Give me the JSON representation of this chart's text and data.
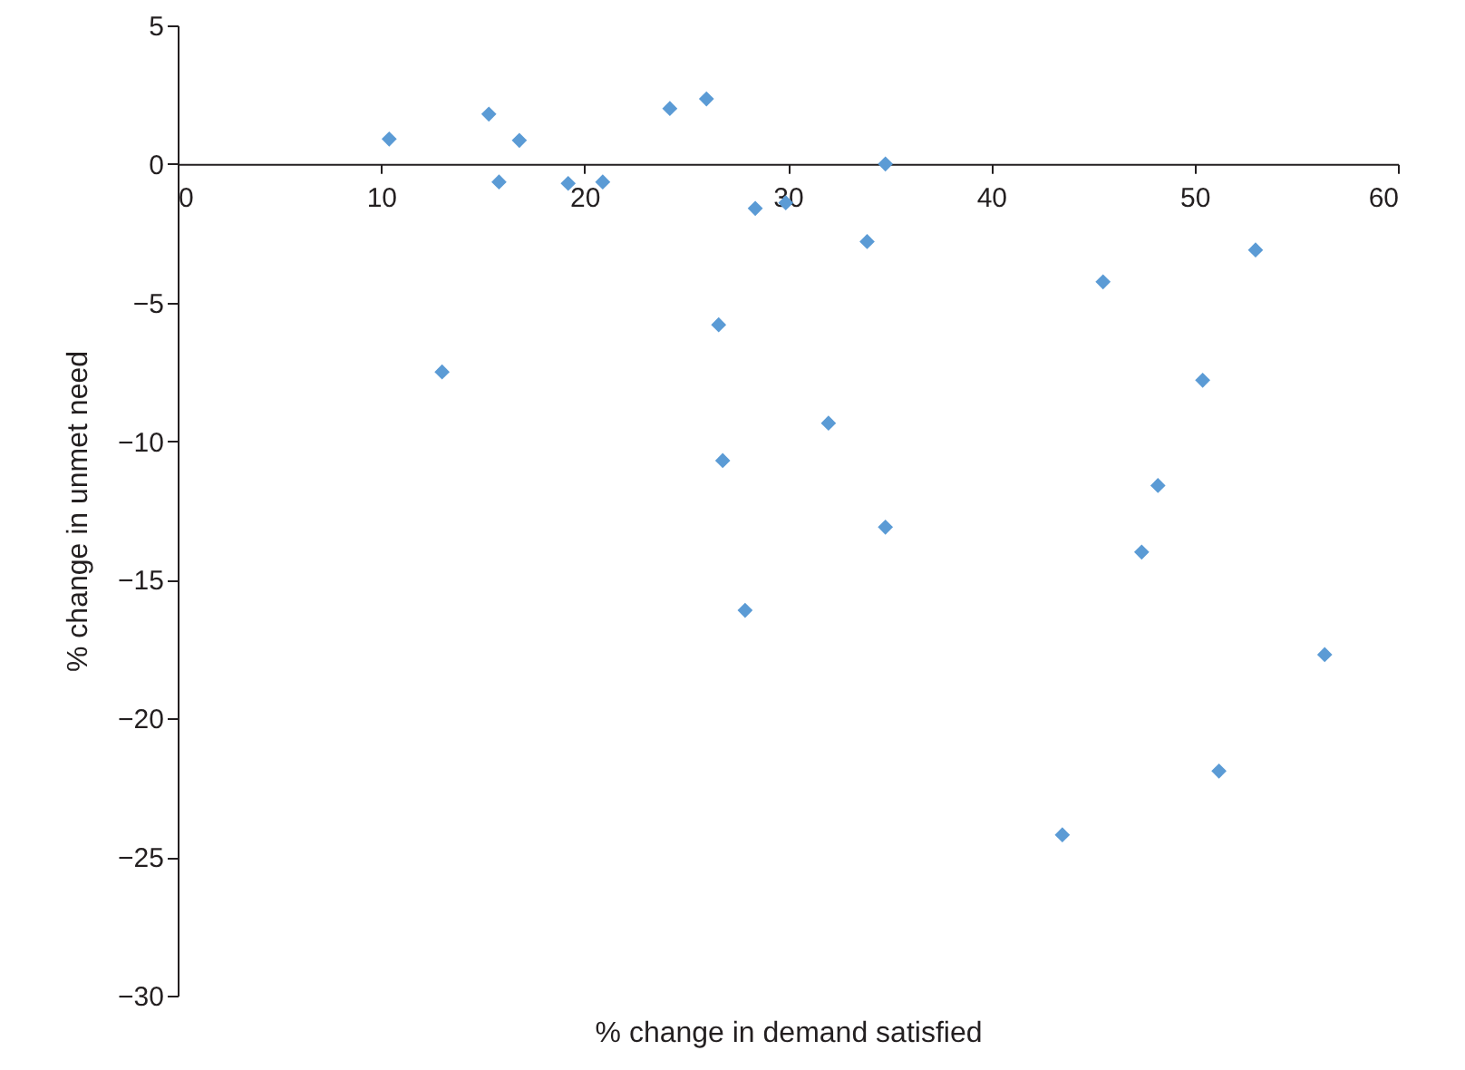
{
  "chart_data": {
    "type": "scatter",
    "xlabel": "% change in demand satisfied",
    "ylabel": "% change in unmet need",
    "x": [
      10.4,
      15.3,
      16.8,
      15.8,
      19.2,
      20.9,
      24.2,
      26.0,
      34.8,
      28.4,
      29.9,
      33.9,
      13.0,
      26.6,
      32.0,
      26.8,
      34.8,
      27.9,
      45.5,
      53.0,
      50.4,
      48.2,
      47.4,
      43.5,
      51.2,
      56.4
    ],
    "series": [
      {
        "color": "#5b9bd5",
        "values": [
          0.9,
          1.8,
          0.85,
          -0.65,
          -0.7,
          -0.65,
          2.0,
          2.35,
          0,
          -1.6,
          -1.4,
          -2.8,
          -7.5,
          -5.8,
          -9.35,
          -10.7,
          -13.1,
          -16.1,
          -4.25,
          -3.1,
          -7.8,
          -11.6,
          -14.0,
          -24.2,
          -21.9,
          -17.7
        ]
      }
    ],
    "xlim": [
      0,
      60
    ],
    "xticks": [
      0,
      10,
      20,
      30,
      40,
      50,
      60
    ],
    "ylim": [
      -30,
      5
    ],
    "yticks": [
      -30,
      -25,
      -20,
      -15,
      -10,
      -5,
      0,
      5
    ],
    "grid": false,
    "marker": "diamond"
  }
}
